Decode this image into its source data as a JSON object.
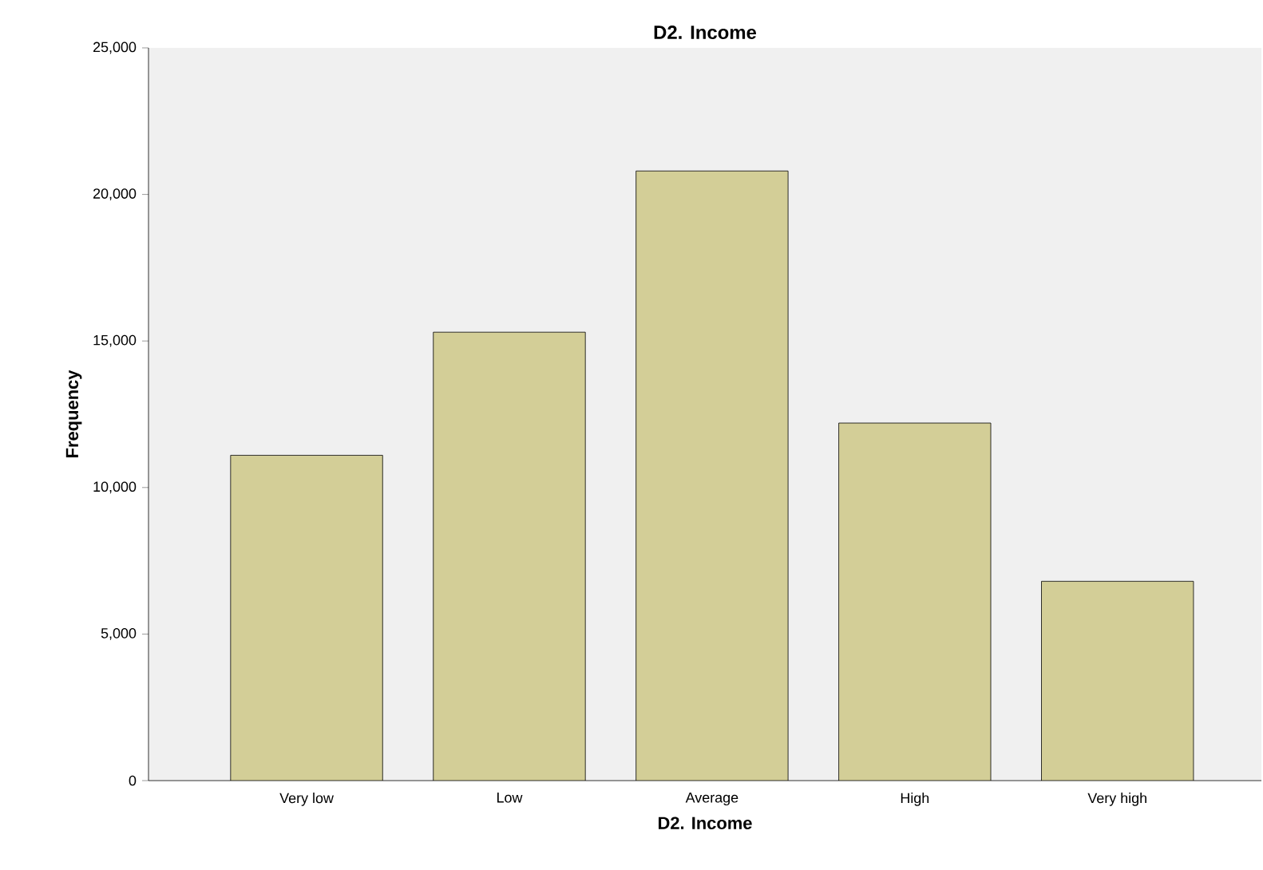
{
  "chart_data": {
    "type": "bar",
    "title": "D2. Income",
    "xlabel": "D2. Income",
    "ylabel": "Frequency",
    "categories": [
      "Very low",
      "Low",
      "Average",
      "High",
      "Very high"
    ],
    "values": [
      11100,
      15300,
      20800,
      12200,
      6800
    ],
    "color": "#d3ce97",
    "ylim": [
      0,
      25000
    ],
    "yticks": [
      {
        "value": 0,
        "label": "0"
      },
      {
        "value": 5000,
        "label": "5,000"
      },
      {
        "value": 10000,
        "label": "10,000"
      },
      {
        "value": 15000,
        "label": "15,000"
      },
      {
        "value": 20000,
        "label": "20,000"
      },
      {
        "value": 25000,
        "label": "25,000"
      }
    ],
    "grid": false
  }
}
